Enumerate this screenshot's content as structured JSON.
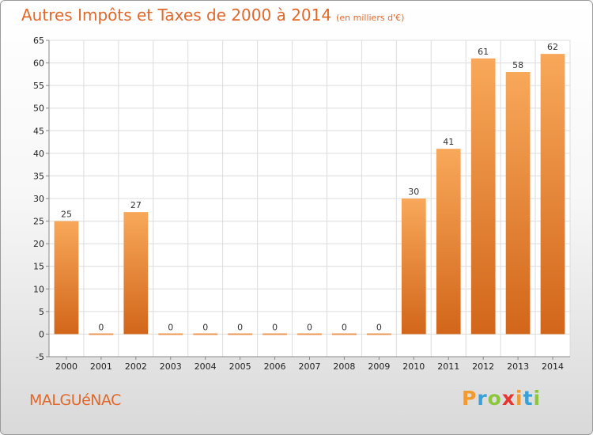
{
  "header": {
    "title": "Autres Impôts et Taxes de 2000 à 2014",
    "unit": "(en milliers d'€)"
  },
  "footer": {
    "town": "MALGUéNAC",
    "logo": [
      "P",
      "r",
      "o",
      "x",
      "i",
      "t",
      "i"
    ],
    "logo_colors": [
      "#f29a2e",
      "#3aa0d8",
      "#8cc63f",
      "#e8342e",
      "#f29a2e",
      "#3aa0d8",
      "#8cc63f"
    ]
  },
  "chart_data": {
    "type": "bar",
    "title": "Autres Impôts et Taxes de 2000 à 2014",
    "subtitle": "(en milliers d'€)",
    "categories": [
      "2000",
      "2001",
      "2002",
      "2003",
      "2004",
      "2005",
      "2006",
      "2007",
      "2008",
      "2009",
      "2010",
      "2011",
      "2012",
      "2013",
      "2014"
    ],
    "values": [
      25,
      0,
      27,
      0,
      0,
      0,
      0,
      0,
      0,
      0,
      30,
      41,
      61,
      58,
      62
    ],
    "data_labels": [
      "25",
      "0",
      "27",
      "0",
      "0",
      "0",
      "0",
      "0",
      "0",
      "0",
      "30",
      "41",
      "61",
      "58",
      "62"
    ],
    "ylim": [
      -5,
      65
    ],
    "yticks": [
      -5,
      0,
      5,
      10,
      15,
      20,
      25,
      30,
      35,
      40,
      45,
      50,
      55,
      60,
      65
    ],
    "grid": true,
    "legend": "none",
    "bar_color": "#f0892f"
  }
}
